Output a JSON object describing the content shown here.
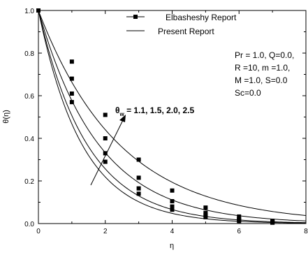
{
  "chart_data": {
    "type": "line",
    "xlabel": "η",
    "ylabel": "θ(η)",
    "xlim": [
      0,
      8
    ],
    "ylim": [
      0,
      1.0
    ],
    "x_ticks": [
      "0",
      "2",
      "4",
      "6",
      "8"
    ],
    "y_ticks": [
      "0.0",
      "0.2",
      "0.4",
      "0.6",
      "0.8",
      "1.0"
    ],
    "legend": {
      "placement": "top-center",
      "entries": [
        {
          "label": "Elbasheshy Report",
          "style": "line-square-markers"
        },
        {
          "label": "Present Report",
          "style": "line"
        }
      ]
    },
    "annotation": {
      "text_main": "θ",
      "text_sub": "w",
      "text_rest": " = 1.1, 1.5, 2.0, 2.5",
      "arrow": "increasing θw"
    },
    "parameters": [
      "Pr = 1.0, Q=0.0,",
      "R =10, m =1.0,",
      "M =1.0, S=0.0",
      "Sc=0.0"
    ],
    "series": [
      {
        "theta_w": 1.1,
        "curve_decay": 0.76,
        "markers": [
          [
            1,
            0.57
          ],
          [
            2,
            0.29
          ],
          [
            3,
            0.14
          ],
          [
            4,
            0.065
          ],
          [
            5,
            0.03
          ],
          [
            6,
            0.012
          ],
          [
            7,
            0.004
          ]
        ]
      },
      {
        "theta_w": 1.5,
        "curve_decay": 0.68,
        "markers": [
          [
            1,
            0.61
          ],
          [
            2,
            0.33
          ],
          [
            3,
            0.165
          ],
          [
            4,
            0.08
          ],
          [
            5,
            0.04
          ],
          [
            6,
            0.016
          ],
          [
            7,
            0.006
          ]
        ]
      },
      {
        "theta_w": 2.0,
        "curve_decay": 0.55,
        "markers": [
          [
            1,
            0.68
          ],
          [
            2,
            0.4
          ],
          [
            3,
            0.215
          ],
          [
            4,
            0.105
          ],
          [
            5,
            0.05
          ],
          [
            6,
            0.022
          ],
          [
            7,
            0.008
          ]
        ]
      },
      {
        "theta_w": 2.5,
        "curve_decay": 0.41,
        "markers": [
          [
            1,
            0.76
          ],
          [
            2,
            0.51
          ],
          [
            3,
            0.3
          ],
          [
            4,
            0.155
          ],
          [
            5,
            0.075
          ],
          [
            6,
            0.033
          ],
          [
            7,
            0.013
          ]
        ]
      }
    ]
  }
}
